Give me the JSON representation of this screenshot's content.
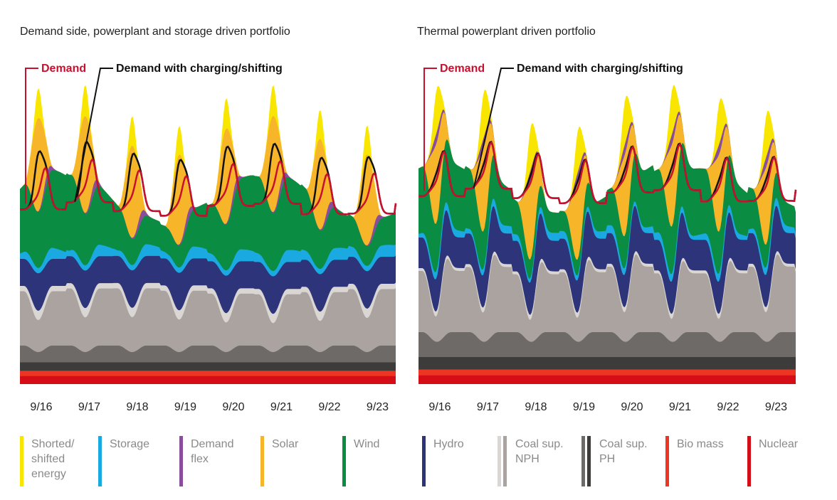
{
  "chart_data": {
    "type": "area",
    "x_ticks": [
      "9/16",
      "9/17",
      "9/18",
      "9/19",
      "9/20",
      "9/21",
      "9/22",
      "9/23"
    ],
    "annotations": {
      "demand": "Demand",
      "charging": "Demand with charging/shifting"
    },
    "colors": {
      "shortage": "#f9e600",
      "storage": "#1aa9e0",
      "flex": "#8a4d9b",
      "solar": "#f7b52a",
      "wind": "#0b8c43",
      "hydro": "#2e3479",
      "coal_nph_light": "#d9d6d3",
      "coal_nph": "#aba39f",
      "coal_ph": "#6d6a68",
      "coal_ph_dark": "#3d3c3b",
      "bio": "#ee3524",
      "nuclear": "#d50d16",
      "demand_line": "#c8102e",
      "charging_line": "#111111"
    },
    "panels": [
      {
        "title": "Demand side, powerplant and storage driven portfolio",
        "scenario": "storage",
        "days": 8,
        "profile": {
          "nuclear": 12,
          "bio": 8,
          "coal_ph": 28,
          "coal_nph": 96,
          "hydro": 45,
          "wind": 130,
          "demand_base": 305,
          "solar_peak": 140,
          "shortage_peak": 45
        }
      },
      {
        "title": "Thermal powerplant driven portfolio",
        "scenario": "thermal",
        "days": 8,
        "profile": {
          "nuclear": 12,
          "bio": 8,
          "coal_ph": 38,
          "coal_nph": 120,
          "hydro": 60,
          "wind": 110,
          "demand_base": 300,
          "solar_peak": 110,
          "shortage_peak": 60
        }
      }
    ],
    "legend": [
      {
        "label": "Shorted/\nshifted\nenergy",
        "color": "#f9e600"
      },
      {
        "label": "Storage",
        "color": "#1aa9e0"
      },
      {
        "label": "Demand\nflex",
        "color": "#8a4d9b"
      },
      {
        "label": "Solar",
        "color": "#f7b52a"
      },
      {
        "label": "Wind",
        "color": "#0b8c43"
      },
      {
        "label": "Hydro",
        "color": "#2e3479"
      },
      {
        "label": "Coal sup.\nNPH",
        "color": "#aba39f",
        "color2": "#d9d6d3"
      },
      {
        "label": "Coal sup.\nPH",
        "color": "#3d3c3b",
        "color2": "#6d6a68"
      },
      {
        "label": "Bio mass",
        "color": "#ee3524"
      },
      {
        "label": "Nuclear",
        "color": "#d50d16"
      }
    ]
  }
}
